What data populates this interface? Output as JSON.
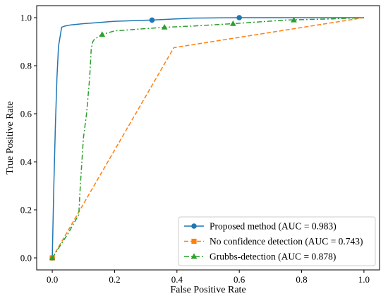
{
  "chart_data": {
    "type": "line",
    "xlabel": "False Positive Rate",
    "ylabel": "True Positive Rate",
    "xlim": [
      -0.05,
      1.05
    ],
    "ylim": [
      -0.05,
      1.05
    ],
    "xticks": [
      "0.0",
      "0.2",
      "0.4",
      "0.6",
      "0.8",
      "1.0"
    ],
    "yticks": [
      "0.0",
      "0.2",
      "0.4",
      "0.6",
      "0.8",
      "1.0"
    ],
    "grid": false,
    "legend_position": "lower-right",
    "series": [
      {
        "name": "Proposed method (AUC = 0.983)",
        "color": "#1f77b4",
        "linestyle": "solid",
        "marker": "circle",
        "x": [
          0.0,
          0.005,
          0.01,
          0.015,
          0.02,
          0.025,
          0.03,
          0.04,
          0.06,
          0.1,
          0.2,
          0.32,
          0.45,
          0.6,
          0.8,
          1.0
        ],
        "y": [
          0.0,
          0.3,
          0.55,
          0.75,
          0.88,
          0.92,
          0.96,
          0.965,
          0.97,
          0.975,
          0.985,
          0.99,
          0.998,
          1.0,
          1.0,
          1.0
        ],
        "markers_x": [
          0.0,
          0.32,
          0.6
        ],
        "markers_y": [
          0.0,
          0.99,
          1.0
        ]
      },
      {
        "name": "No confidence detection (AUC = 0.743)",
        "color": "#ff7f0e",
        "linestyle": "dashed",
        "marker": "square",
        "x": [
          0.0,
          0.39,
          1.0
        ],
        "y": [
          0.0,
          0.875,
          1.0
        ],
        "markers_x": [
          0.0
        ],
        "markers_y": [
          0.0
        ]
      },
      {
        "name": "Grubbs-detection (AUC = 0.878)",
        "color": "#2ca02c",
        "linestyle": "dashdot",
        "marker": "triangle",
        "x": [
          0.0,
          0.05,
          0.085,
          0.09,
          0.1,
          0.11,
          0.12,
          0.125,
          0.13,
          0.135,
          0.16,
          0.2,
          0.36,
          0.45,
          0.58,
          0.75,
          0.9,
          1.0
        ],
        "y": [
          0.0,
          0.1,
          0.18,
          0.3,
          0.5,
          0.6,
          0.75,
          0.87,
          0.9,
          0.91,
          0.93,
          0.945,
          0.96,
          0.965,
          0.975,
          0.99,
          0.995,
          1.0
        ],
        "markers_x": [
          0.0,
          0.16,
          0.36,
          0.58,
          0.775
        ],
        "markers_y": [
          0.0,
          0.93,
          0.96,
          0.975,
          0.99
        ]
      }
    ]
  }
}
